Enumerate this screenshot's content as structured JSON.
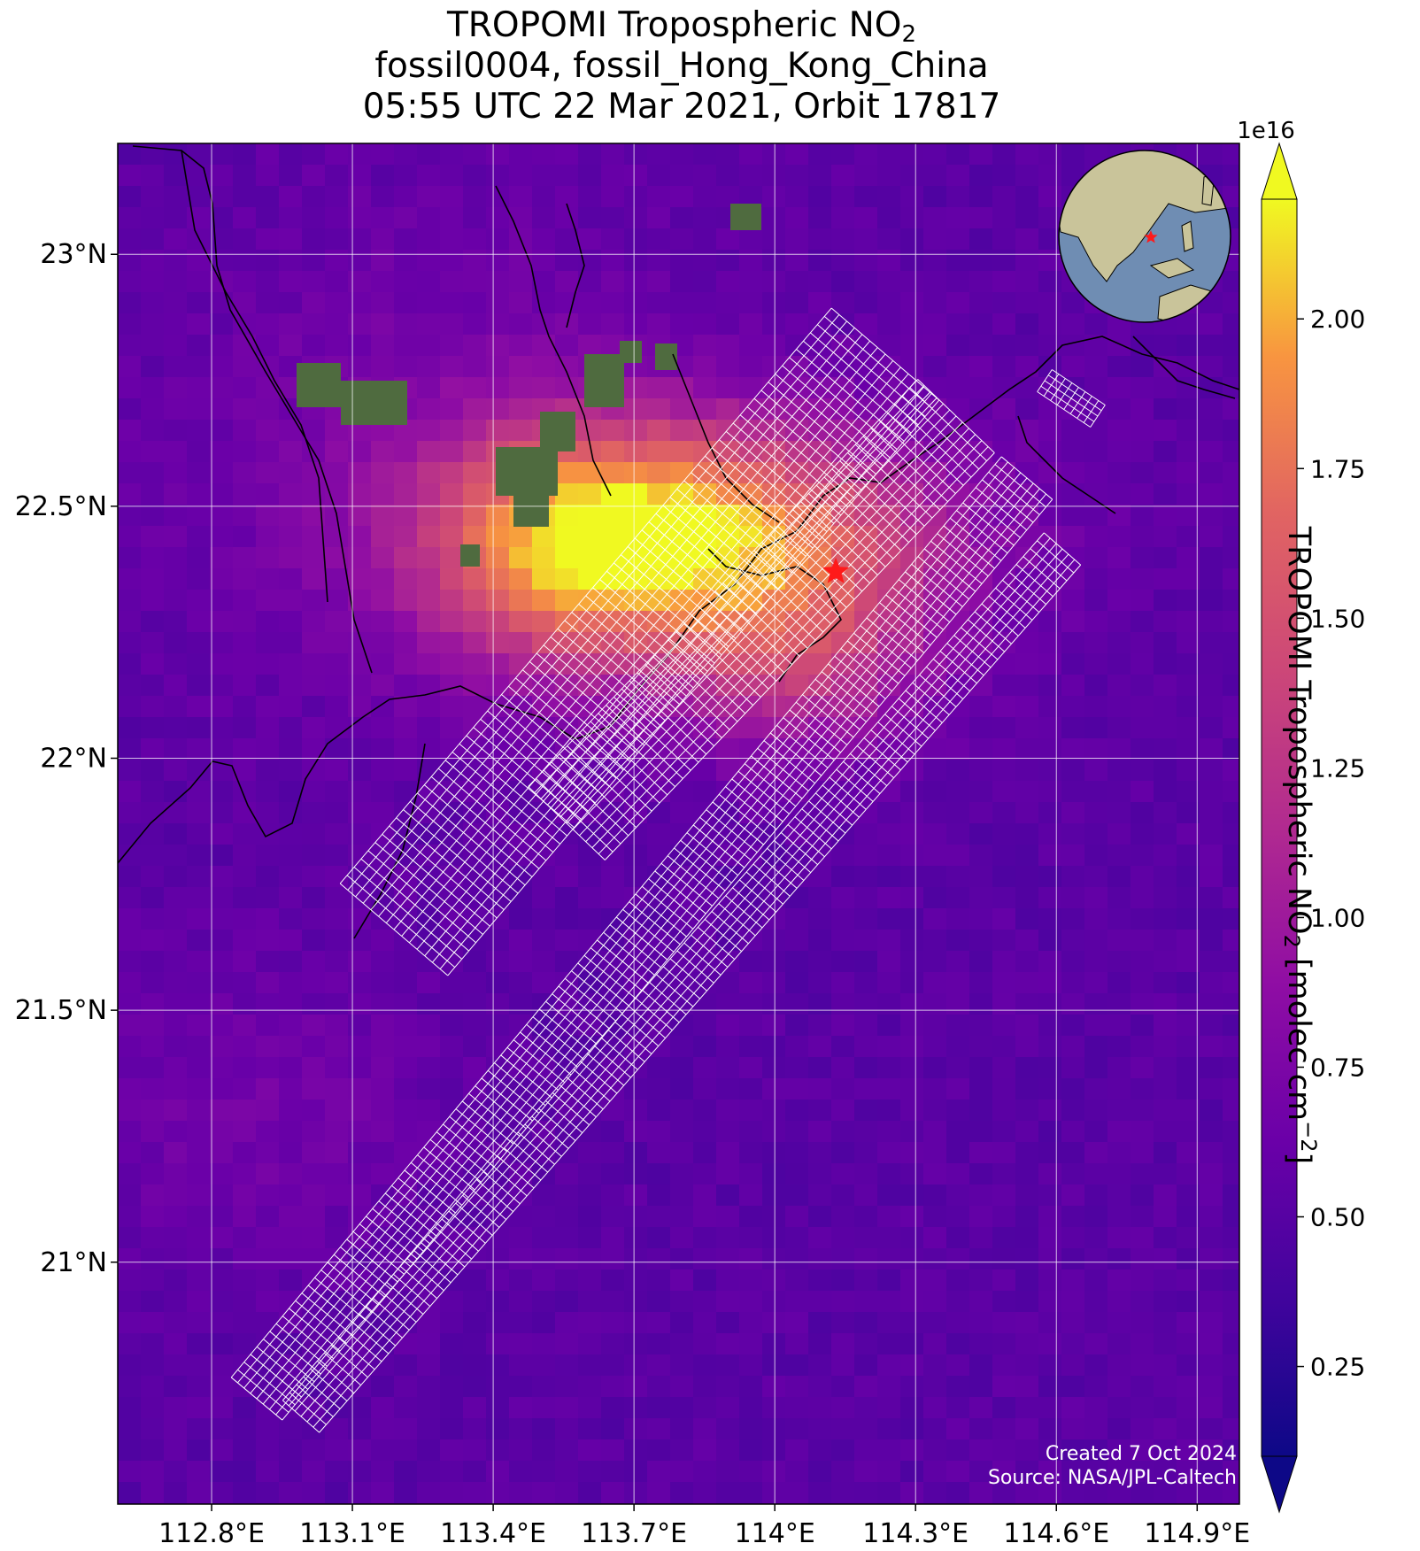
{
  "title": {
    "line1": "TROPOMI Tropospheric NO",
    "line1_sub": "2",
    "line2": "fossil0004, fossil_Hong_Kong_China",
    "line3": "05:55 UTC 22 Mar 2021, Orbit 17817"
  },
  "map": {
    "lon_range": [
      112.6,
      114.99
    ],
    "lat_range": [
      20.52,
      23.22
    ],
    "lon_ticks": [
      {
        "value": 112.8,
        "label": "112.8°E"
      },
      {
        "value": 113.1,
        "label": "113.1°E"
      },
      {
        "value": 113.4,
        "label": "113.4°E"
      },
      {
        "value": 113.7,
        "label": "113.7°E"
      },
      {
        "value": 114.0,
        "label": "114°E"
      },
      {
        "value": 114.3,
        "label": "114.3°E"
      },
      {
        "value": 114.6,
        "label": "114.6°E"
      },
      {
        "value": 114.9,
        "label": "114.9°E"
      }
    ],
    "lat_ticks": [
      {
        "value": 21.0,
        "label": "21°N"
      },
      {
        "value": 21.5,
        "label": "21.5°N"
      },
      {
        "value": 22.0,
        "label": "22°N"
      },
      {
        "value": 22.5,
        "label": "22.5°N"
      },
      {
        "value": 23.0,
        "label": "23°N"
      }
    ],
    "gridlines": true,
    "target": {
      "name": "Hong Kong",
      "lon": 114.13,
      "lat": 22.37,
      "marker": "red-star"
    },
    "colormap": "plasma",
    "ocean_color": "#6f8db3",
    "land_color": "#c9c49a"
  },
  "colorbar": {
    "label": "TROPOMI Tropospheric NO",
    "label_sub": "2",
    "label_units": " [molec cm",
    "label_exp": "−2",
    "label_end": "]",
    "scale_label": "1e16",
    "range": [
      0.1,
      2.2
    ],
    "extend": "both",
    "ticks": [
      "0.25",
      "0.50",
      "0.75",
      "1.00",
      "1.25",
      "1.50",
      "1.75",
      "2.00"
    ],
    "tick_values": [
      0.25,
      0.5,
      0.75,
      1.0,
      1.25,
      1.5,
      1.75,
      2.0
    ]
  },
  "credits": {
    "created": "Created 7 Oct 2024",
    "source": "Source: NASA/JPL-Caltech"
  }
}
